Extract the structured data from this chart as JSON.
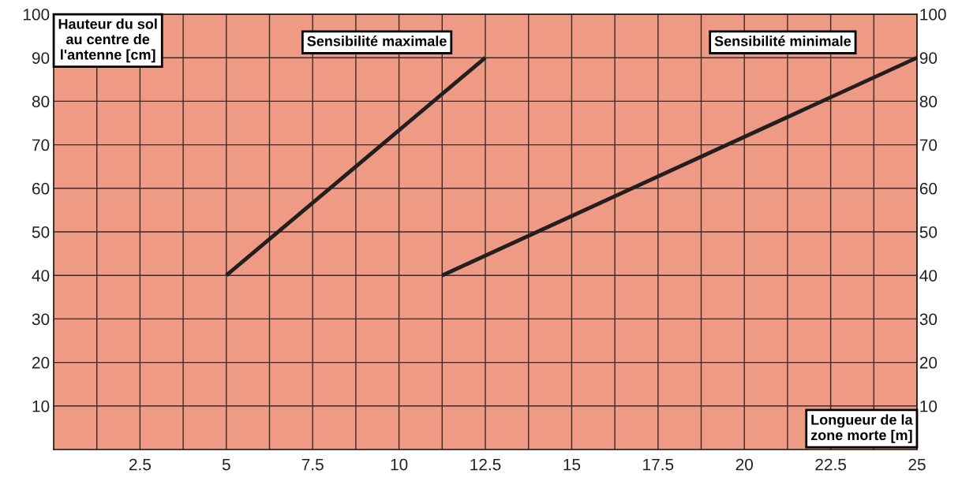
{
  "chart_data": {
    "type": "line",
    "xlabel": "Longueur de la zone morte [m]",
    "ylabel": "Hauteur du sol au centre de l'antenne [cm]",
    "series": [
      {
        "name": "Sensibilité maximale",
        "color": "#231f20",
        "x": [
          5,
          12.5
        ],
        "values": [
          40,
          90
        ]
      },
      {
        "name": "Sensibilité minimale",
        "color": "#231f20",
        "x": [
          11.25,
          25
        ],
        "values": [
          40,
          90
        ]
      }
    ],
    "xlim": [
      0,
      25
    ],
    "xticks": [
      {
        "value": 1.25,
        "label": null
      },
      2.5,
      {
        "value": 3.75,
        "label": null
      },
      5,
      {
        "value": 6.25,
        "label": null
      },
      7.5,
      {
        "value": 8.75,
        "label": null
      },
      10,
      {
        "value": 11.25,
        "label": null
      },
      12.5,
      {
        "value": 13.75,
        "label": null
      },
      15,
      {
        "value": 16.25,
        "label": null
      },
      17.5,
      {
        "value": 18.75,
        "label": null
      },
      20,
      {
        "value": 21.25,
        "label": null
      },
      22.5,
      {
        "value": 23.75,
        "label": null
      },
      25
    ],
    "ylim": [
      0,
      100
    ],
    "yticks": [
      10,
      20,
      30,
      40,
      50,
      60,
      70,
      80,
      90,
      100
    ],
    "y2lim": [
      0,
      100
    ],
    "y2ticks": [
      10,
      20,
      30,
      40,
      50,
      60,
      70,
      80,
      90,
      100
    ],
    "grid": true,
    "line_style": "solid",
    "marker": "none",
    "legend": false
  }
}
